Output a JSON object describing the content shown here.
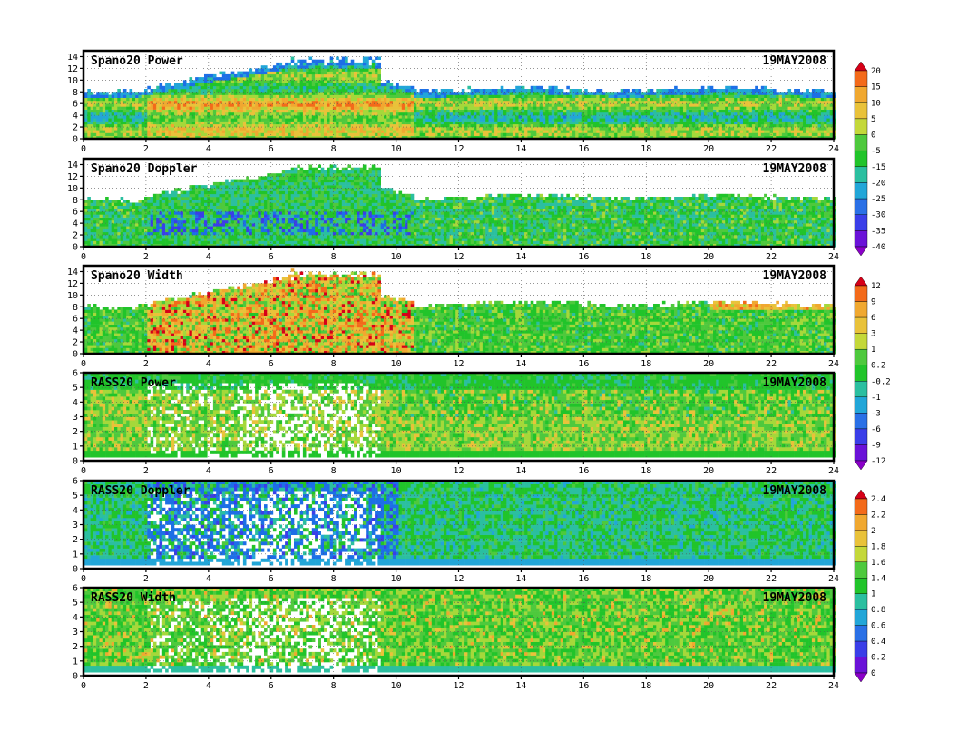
{
  "figure": {
    "date": "19MAY2008",
    "x_ticks": [
      "0",
      "2",
      "4",
      "6",
      "8",
      "10",
      "12",
      "14",
      "16",
      "18",
      "20",
      "22",
      "24"
    ]
  },
  "colorbars": [
    {
      "id": "cb1",
      "labels": [
        "20",
        "15",
        "10",
        "5",
        "0",
        "-5",
        "-15",
        "-20",
        "-25",
        "-30",
        "-35",
        "-40"
      ],
      "colors": [
        "#d60018",
        "#f36a1a",
        "#f0a830",
        "#e9c23a",
        "#c4d83a",
        "#4ec93d",
        "#21c42a",
        "#2bbfa0",
        "#22a6d8",
        "#2a70e6",
        "#3a3ee8",
        "#6a12d8",
        "#8a00c8"
      ]
    },
    {
      "id": "cb2",
      "labels": [
        "12",
        "9",
        "6",
        "3",
        "1",
        "0.2",
        "-0.2",
        "-1",
        "-3",
        "-6",
        "-9",
        "-12"
      ],
      "colors": [
        "#d60018",
        "#f36a1a",
        "#f0a830",
        "#e9c23a",
        "#c4d83a",
        "#4ec93d",
        "#21c42a",
        "#2bbfa0",
        "#22a6d8",
        "#2a70e6",
        "#3a3ee8",
        "#6a12d8",
        "#8a00c8"
      ]
    },
    {
      "id": "cb3",
      "labels": [
        "2.4",
        "2.2",
        "2",
        "1.8",
        "1.6",
        "1.4",
        "1",
        "0.8",
        "0.6",
        "0.4",
        "0.2",
        "0"
      ],
      "colors": [
        "#d60018",
        "#f36a1a",
        "#f0a830",
        "#e9c23a",
        "#c4d83a",
        "#4ec93d",
        "#21c42a",
        "#2bbfa0",
        "#22a6d8",
        "#2a70e6",
        "#3a3ee8",
        "#6a12d8",
        "#8a00c8"
      ]
    }
  ],
  "chart_data": [
    {
      "type": "heatmap",
      "title": "Spano20 Power",
      "date": "19MAY2008",
      "xlim": [
        0,
        24
      ],
      "ylim": [
        0,
        15
      ],
      "x_ticks": [
        0,
        2,
        4,
        6,
        8,
        10,
        12,
        14,
        16,
        18,
        20,
        22,
        24
      ],
      "y_ticks": [
        0,
        2,
        4,
        6,
        8,
        10,
        12,
        14
      ],
      "grid": true,
      "colorbar": "cb1"
    },
    {
      "type": "heatmap",
      "title": "Spano20 Doppler",
      "date": "19MAY2008",
      "xlim": [
        0,
        24
      ],
      "ylim": [
        0,
        15
      ],
      "x_ticks": [
        0,
        2,
        4,
        6,
        8,
        10,
        12,
        14,
        16,
        18,
        20,
        22,
        24
      ],
      "y_ticks": [
        0,
        2,
        4,
        6,
        8,
        10,
        12,
        14
      ],
      "grid": true,
      "colorbar": "cb1"
    },
    {
      "type": "heatmap",
      "title": "Spano20 Width",
      "date": "19MAY2008",
      "xlim": [
        0,
        24
      ],
      "ylim": [
        0,
        15
      ],
      "x_ticks": [
        0,
        2,
        4,
        6,
        8,
        10,
        12,
        14,
        16,
        18,
        20,
        22,
        24
      ],
      "y_ticks": [
        0,
        2,
        4,
        6,
        8,
        10,
        12,
        14
      ],
      "grid": true,
      "colorbar": "cb2"
    },
    {
      "type": "heatmap",
      "title": "RASS20 Power",
      "date": "19MAY2008",
      "xlim": [
        0,
        24
      ],
      "ylim": [
        0,
        6
      ],
      "x_ticks": [
        0,
        2,
        4,
        6,
        8,
        10,
        12,
        14,
        16,
        18,
        20,
        22,
        24
      ],
      "y_ticks": [
        0,
        1,
        2,
        3,
        4,
        5,
        6
      ],
      "grid": true,
      "colorbar": "cb2"
    },
    {
      "type": "heatmap",
      "title": "RASS20 Doppler",
      "date": "19MAY2008",
      "xlim": [
        0,
        24
      ],
      "ylim": [
        0,
        6
      ],
      "x_ticks": [
        0,
        2,
        4,
        6,
        8,
        10,
        12,
        14,
        16,
        18,
        20,
        22,
        24
      ],
      "y_ticks": [
        0,
        1,
        2,
        3,
        4,
        5,
        6
      ],
      "grid": true,
      "colorbar": "cb3"
    },
    {
      "type": "heatmap",
      "title": "RASS20 Width",
      "date": "19MAY2008",
      "xlim": [
        0,
        24
      ],
      "ylim": [
        0,
        6
      ],
      "x_ticks": [
        0,
        2,
        4,
        6,
        8,
        10,
        12,
        14,
        16,
        18,
        20,
        22,
        24
      ],
      "y_ticks": [
        0,
        1,
        2,
        3,
        4,
        5,
        6
      ],
      "grid": true,
      "colorbar": "cb3"
    }
  ]
}
